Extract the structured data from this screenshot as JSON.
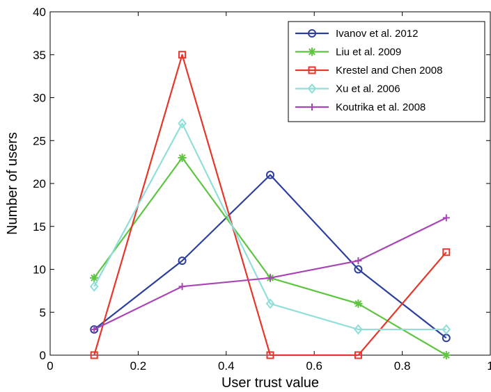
{
  "chart_data": {
    "type": "line",
    "title": "",
    "xlabel": "User trust value",
    "ylabel": "Number of users",
    "xlim": [
      0,
      1
    ],
    "ylim": [
      0,
      40
    ],
    "xticks": [
      0,
      0.2,
      0.4,
      0.6,
      0.8,
      1
    ],
    "xtick_labels": [
      "0",
      "0.2",
      "0.4",
      "0.6",
      "0.8",
      "1"
    ],
    "yticks": [
      0,
      5,
      10,
      15,
      20,
      25,
      30,
      35,
      40
    ],
    "ytick_labels": [
      "0",
      "5",
      "10",
      "15",
      "20",
      "25",
      "30",
      "35",
      "40"
    ],
    "grid": false,
    "legend_position": "top-right",
    "x": [
      0.1,
      0.3,
      0.5,
      0.7,
      0.9
    ],
    "series": [
      {
        "name": "Ivanov et al. 2012",
        "values": [
          3,
          11,
          21,
          10,
          2
        ],
        "color": "#2c3f9e",
        "marker": "circle"
      },
      {
        "name": "Liu et al. 2009",
        "values": [
          9,
          23,
          9,
          6,
          0
        ],
        "color": "#5dc540",
        "marker": "star"
      },
      {
        "name": "Krestel and Chen 2008",
        "values": [
          0,
          35,
          0,
          0,
          12
        ],
        "color": "#e8352a",
        "marker": "square"
      },
      {
        "name": "Xu et al. 2006",
        "values": [
          8,
          27,
          6,
          3,
          3
        ],
        "color": "#8fdfd8",
        "marker": "diamond"
      },
      {
        "name": "Koutrika et al. 2008",
        "values": [
          3,
          8,
          9,
          11,
          16
        ],
        "color": "#a845b4",
        "marker": "plus"
      }
    ]
  }
}
